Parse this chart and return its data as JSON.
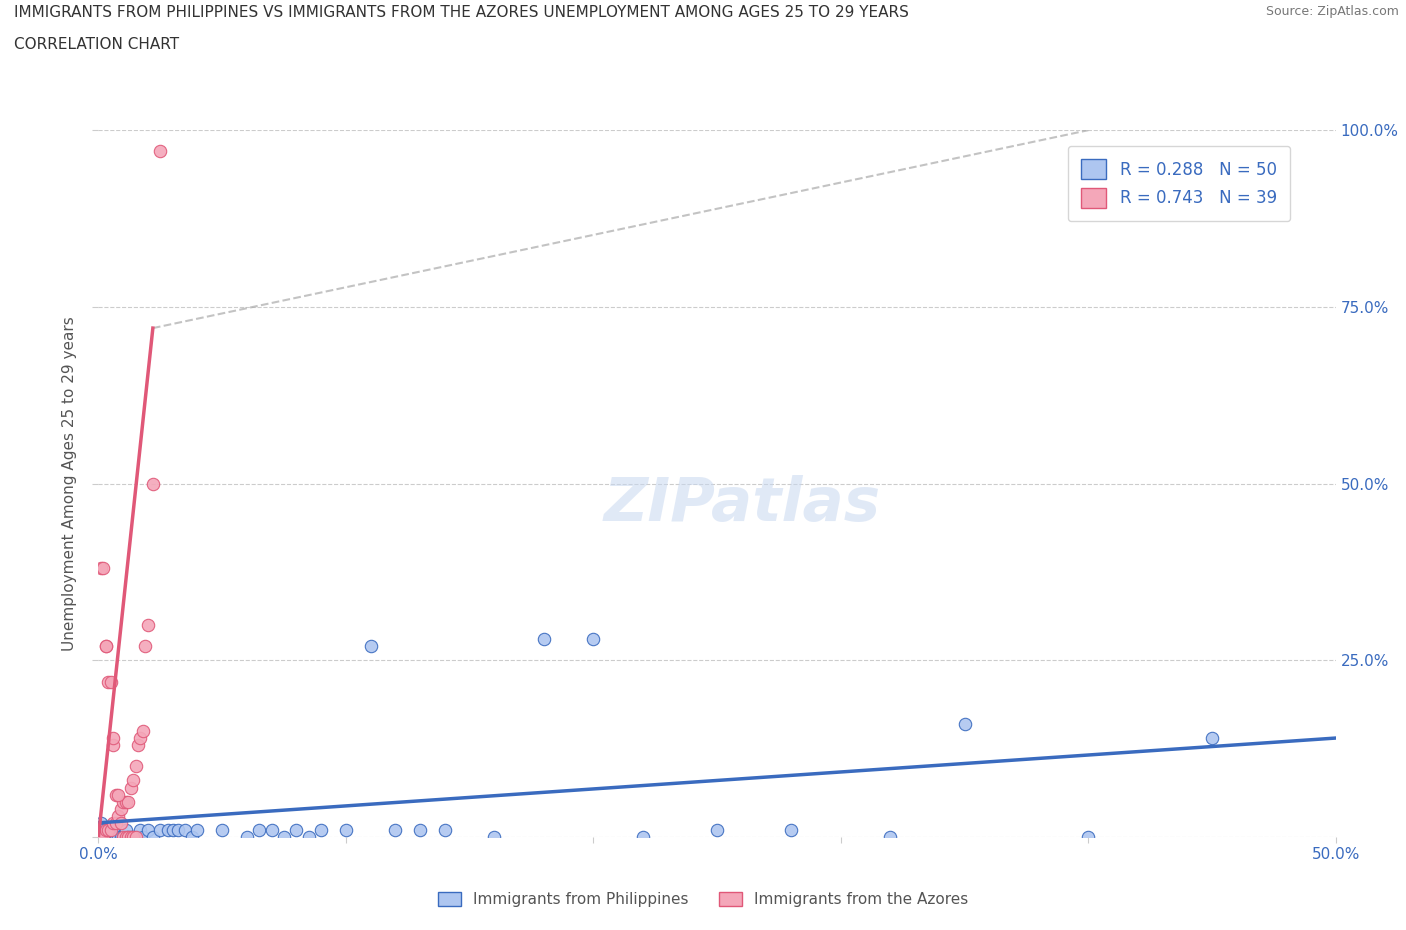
{
  "title_line1": "IMMIGRANTS FROM PHILIPPINES VS IMMIGRANTS FROM THE AZORES UNEMPLOYMENT AMONG AGES 25 TO 29 YEARS",
  "title_line2": "CORRELATION CHART",
  "source": "Source: ZipAtlas.com",
  "xlabel_label": "Immigrants from Philippines",
  "xlabel_label2": "Immigrants from the Azores",
  "ylabel": "Unemployment Among Ages 25 to 29 years",
  "xlim": [
    0,
    0.5
  ],
  "ylim": [
    0,
    1.0
  ],
  "philippines_color": "#aec6f0",
  "azores_color": "#f4a7b9",
  "philippines_line_color": "#3a6bbf",
  "azores_line_color": "#e05878",
  "R_philippines": 0.288,
  "N_philippines": 50,
  "R_azores": 0.743,
  "N_azores": 39,
  "watermark": "ZIPatlas",
  "philippines_points": [
    [
      0.001,
      0.02
    ],
    [
      0.002,
      0.01
    ],
    [
      0.003,
      0.0
    ],
    [
      0.004,
      0.0
    ],
    [
      0.005,
      0.01
    ],
    [
      0.006,
      0.01
    ],
    [
      0.007,
      0.0
    ],
    [
      0.008,
      0.0
    ],
    [
      0.009,
      0.0
    ],
    [
      0.01,
      0.0
    ],
    [
      0.011,
      0.01
    ],
    [
      0.012,
      0.0
    ],
    [
      0.013,
      0.0
    ],
    [
      0.014,
      0.0
    ],
    [
      0.015,
      0.0
    ],
    [
      0.016,
      0.0
    ],
    [
      0.017,
      0.01
    ],
    [
      0.018,
      0.0
    ],
    [
      0.02,
      0.01
    ],
    [
      0.022,
      0.0
    ],
    [
      0.025,
      0.01
    ],
    [
      0.028,
      0.01
    ],
    [
      0.03,
      0.01
    ],
    [
      0.032,
      0.01
    ],
    [
      0.035,
      0.01
    ],
    [
      0.038,
      0.0
    ],
    [
      0.04,
      0.01
    ],
    [
      0.05,
      0.01
    ],
    [
      0.06,
      0.0
    ],
    [
      0.065,
      0.01
    ],
    [
      0.07,
      0.01
    ],
    [
      0.075,
      0.0
    ],
    [
      0.08,
      0.01
    ],
    [
      0.085,
      0.0
    ],
    [
      0.09,
      0.01
    ],
    [
      0.1,
      0.01
    ],
    [
      0.11,
      0.27
    ],
    [
      0.12,
      0.01
    ],
    [
      0.13,
      0.01
    ],
    [
      0.14,
      0.01
    ],
    [
      0.16,
      0.0
    ],
    [
      0.18,
      0.28
    ],
    [
      0.2,
      0.28
    ],
    [
      0.22,
      0.0
    ],
    [
      0.25,
      0.01
    ],
    [
      0.28,
      0.01
    ],
    [
      0.32,
      0.0
    ],
    [
      0.35,
      0.16
    ],
    [
      0.4,
      0.0
    ],
    [
      0.45,
      0.14
    ]
  ],
  "azores_points": [
    [
      0.001,
      0.0
    ],
    [
      0.002,
      0.0
    ],
    [
      0.003,
      0.01
    ],
    [
      0.004,
      0.01
    ],
    [
      0.005,
      0.01
    ],
    [
      0.006,
      0.02
    ],
    [
      0.007,
      0.02
    ],
    [
      0.008,
      0.03
    ],
    [
      0.009,
      0.04
    ],
    [
      0.01,
      0.05
    ],
    [
      0.011,
      0.05
    ],
    [
      0.012,
      0.05
    ],
    [
      0.013,
      0.07
    ],
    [
      0.014,
      0.08
    ],
    [
      0.015,
      0.1
    ],
    [
      0.016,
      0.13
    ],
    [
      0.017,
      0.14
    ],
    [
      0.018,
      0.15
    ],
    [
      0.019,
      0.27
    ],
    [
      0.02,
      0.3
    ],
    [
      0.022,
      0.5
    ],
    [
      0.025,
      0.97
    ],
    [
      0.001,
      0.38
    ],
    [
      0.002,
      0.38
    ],
    [
      0.003,
      0.27
    ],
    [
      0.003,
      0.27
    ],
    [
      0.004,
      0.22
    ],
    [
      0.005,
      0.22
    ],
    [
      0.006,
      0.13
    ],
    [
      0.006,
      0.14
    ],
    [
      0.007,
      0.06
    ],
    [
      0.008,
      0.06
    ],
    [
      0.009,
      0.02
    ],
    [
      0.01,
      0.0
    ],
    [
      0.011,
      0.0
    ],
    [
      0.012,
      0.0
    ],
    [
      0.013,
      0.0
    ],
    [
      0.014,
      0.0
    ],
    [
      0.015,
      0.0
    ]
  ],
  "phil_reg_slope": 0.38,
  "phil_reg_intercept": 0.005,
  "azores_reg_slope": 38.0,
  "azores_reg_intercept": -0.02
}
